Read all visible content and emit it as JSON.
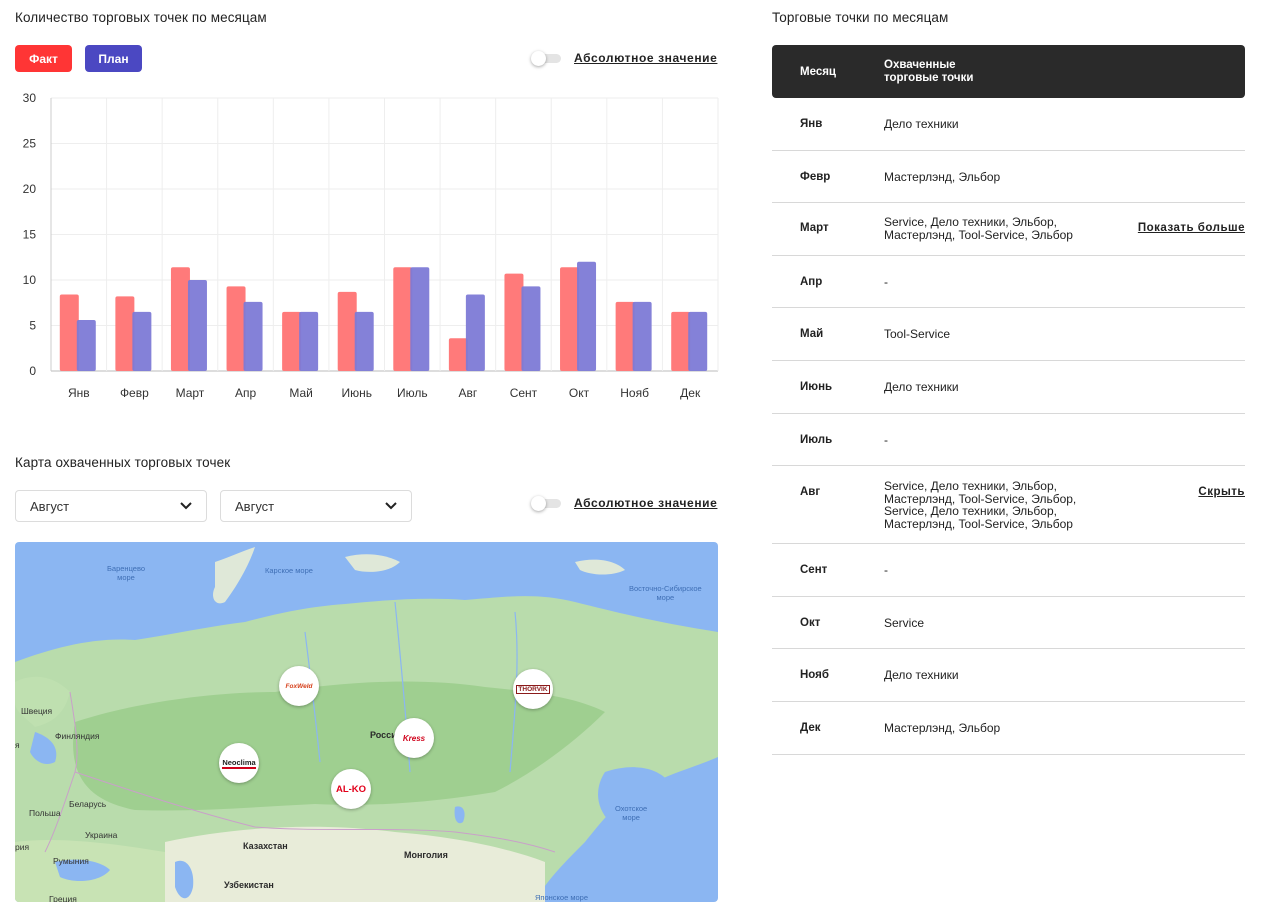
{
  "chart_section": {
    "title": "Количество торговых точек по месяцам",
    "fact_label": "Факт",
    "plan_label": "План",
    "toggle_label": "Абсолютное значение"
  },
  "chart_data": {
    "type": "bar",
    "categories": [
      "Янв",
      "Февр",
      "Март",
      "Апр",
      "Май",
      "Июнь",
      "Июль",
      "Авг",
      "Сент",
      "Окт",
      "Нояб",
      "Дек"
    ],
    "series": [
      {
        "name": "Факт",
        "color": "#ff7a7a",
        "values": [
          8.4,
          8.2,
          11.4,
          9.3,
          6.5,
          8.7,
          11.4,
          3.6,
          10.7,
          11.4,
          7.6,
          6.5
        ]
      },
      {
        "name": "План",
        "color": "#7d7ad6",
        "values": [
          5.6,
          6.5,
          10.0,
          7.6,
          6.5,
          6.5,
          11.4,
          8.4,
          9.3,
          12.0,
          7.6,
          6.5
        ]
      }
    ],
    "ylim": [
      0,
      30
    ],
    "yticks": [
      0,
      5,
      10,
      15,
      20,
      25,
      30
    ],
    "grid": true
  },
  "map_section": {
    "title": "Карта охваченных торговых точек",
    "select_from": "Август",
    "select_to": "Август",
    "toggle_label": "Абсолютное значение",
    "labels": {
      "barents": "Баренцево\nморе",
      "kara": "Карское море",
      "east_siberian": "Восточно-Сибирское\nморе",
      "okhotsk": "Охотское\nморе",
      "japan": "Японское море",
      "sweden": "Швеция",
      "finland": "Финляндия",
      "belarus": "Беларусь",
      "poland": "Польша",
      "ukraine": "Украина",
      "romania": "Румыния",
      "greece": "Греция",
      "kazakhstan": "Казахстан",
      "mongolia": "Монголия",
      "uzbekistan": "Узбекистан",
      "russia": "Росси",
      "edge1": "я",
      "edge2": "рия"
    },
    "markers": [
      {
        "brand": "FoxWeld",
        "color": "#d6411c"
      },
      {
        "brand": "THORVIK",
        "color": "#8b1a1a"
      },
      {
        "brand": "Kress",
        "color": "#d0021b"
      },
      {
        "brand": "Neoclima",
        "color": "#222222"
      },
      {
        "brand": "AL-KO",
        "color": "#e2001a"
      }
    ]
  },
  "table": {
    "title": "Торговые точки по месяцам",
    "header_month": "Месяц",
    "header_points_line1": "Охваченные",
    "header_points_line2": "торговые точки",
    "rows": [
      {
        "month": "Янв",
        "lines": [
          "Дело техники"
        ],
        "action": ""
      },
      {
        "month": "Февр",
        "lines": [
          "Мастерлэнд, Эльбор"
        ],
        "action": ""
      },
      {
        "month": "Март",
        "lines": [
          "Service, Дело техники, Эльбор,",
          "Мастерлэнд, Tool-Service, Эльбор"
        ],
        "action": "Показать больше"
      },
      {
        "month": "Апр",
        "lines": [
          "-"
        ],
        "action": ""
      },
      {
        "month": "Май",
        "lines": [
          "Tool-Service"
        ],
        "action": ""
      },
      {
        "month": "Июнь",
        "lines": [
          "Дело техники"
        ],
        "action": ""
      },
      {
        "month": "Июль",
        "lines": [
          "-"
        ],
        "action": ""
      },
      {
        "month": "Авг",
        "lines": [
          "Service, Дело техники, Эльбор,",
          "Мастерлэнд, Tool-Service, Эльбор,",
          "Service, Дело техники, Эльбор,",
          "Мастерлэнд, Tool-Service, Эльбор"
        ],
        "action": "Скрыть"
      },
      {
        "month": "Сент",
        "lines": [
          "-"
        ],
        "action": ""
      },
      {
        "month": "Окт",
        "lines": [
          "Service"
        ],
        "action": ""
      },
      {
        "month": "Нояб",
        "lines": [
          "Дело техники"
        ],
        "action": ""
      },
      {
        "month": "Дек",
        "lines": [
          "Мастерлэнд, Эльбор"
        ],
        "action": ""
      }
    ]
  }
}
